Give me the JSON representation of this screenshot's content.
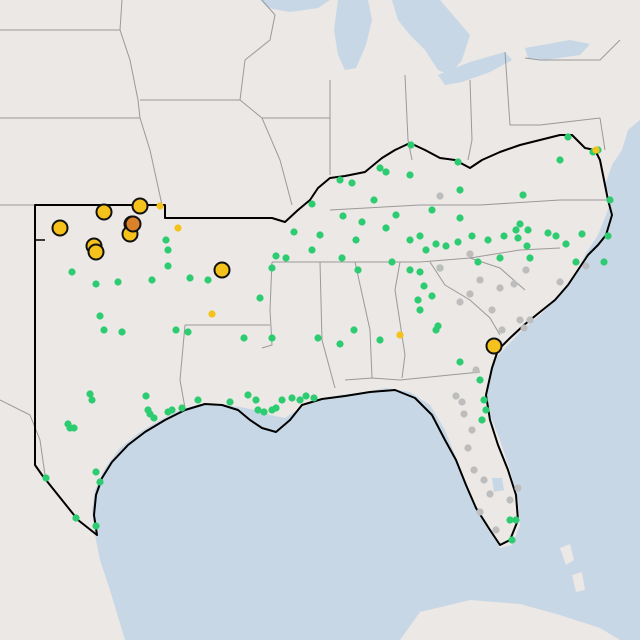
{
  "map": {
    "colors": {
      "land": "#ebe8e5",
      "water": "#c7d7e6",
      "state_border": "#9a9a9a",
      "highlight_border": "#000000",
      "station_green": "#2ecc71",
      "station_gray": "#bdbdbd",
      "station_yellow": "#f5c21b",
      "station_orange": "#d9822b"
    },
    "markers": {
      "large_yellow": 10,
      "large_orange": 1,
      "small_yellow": 4,
      "small_green": "many",
      "small_gray": "many"
    }
  }
}
